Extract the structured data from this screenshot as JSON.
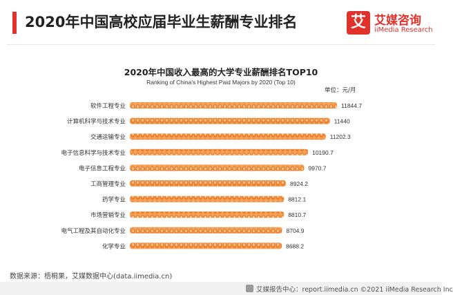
{
  "header": {
    "title": "2020年中国高校应届毕业生薪酬专业排名",
    "brand_logo_char": "艾",
    "brand_cn": "艾媒咨询",
    "brand_en": "iiMedia Research",
    "accent_color": "#e0322b"
  },
  "chart_data": {
    "type": "bar",
    "orientation": "horizontal",
    "title": "2020年中国收入最高的大学专业薪酬排名TOP10",
    "subtitle": "Ranking of China's Highest Paid Majors by 2020 (Top 10)",
    "unit": "单位：元/月",
    "categories": [
      "软件工程专业",
      "计算机科学与技术专业",
      "交通运输专业",
      "电子信息科学与技术专业",
      "电子信息工程专业",
      "工商管理专业",
      "药学专业",
      "市场营销专业",
      "电气工程及其自动化专业",
      "化学专业"
    ],
    "values": [
      11844.7,
      11440,
      11202.3,
      10190.7,
      9970.7,
      8924.2,
      8812.1,
      8810.7,
      8704.9,
      8688.2
    ],
    "value_labels": [
      "11844.7",
      "11440",
      "11202.3",
      "10190.7",
      "9970.7",
      "8924.2",
      "8812.1",
      "8810.7",
      "8704.9",
      "8688.2"
    ],
    "bar_color": "#f08a3c",
    "grid": false
  },
  "source": "数据来源：梧桐果，艾媒数据中心(data.iimedia.cn)",
  "footer": {
    "text": "艾媒报告中心：report.iimedia.cn ©2021  iiMedia Research  Inc",
    "icon": "report-center-icon"
  }
}
